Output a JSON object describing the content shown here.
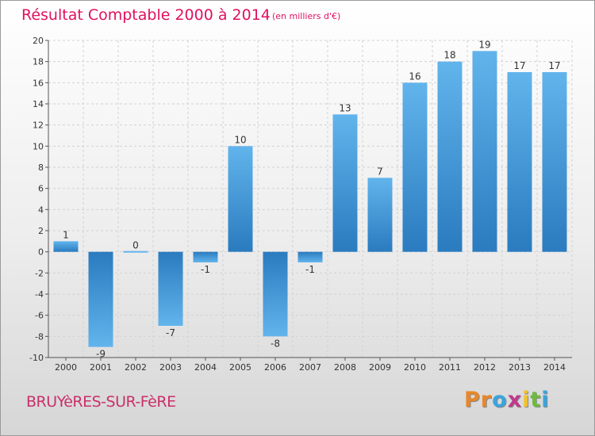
{
  "header": {
    "title": "Résultat Comptable 2000 à 2014",
    "unit": "(en milliers d'€)"
  },
  "footer": {
    "commune": "BRUYèRES-SUR-FèRE",
    "logo": [
      "P",
      "r",
      "o",
      "x",
      "i",
      "t",
      "i"
    ]
  },
  "colors": {
    "title": "#e0115f",
    "bar_light": "#62b4ec",
    "bar_dark": "#2a7bbf",
    "logo": [
      "#e8872a",
      "#e8872a",
      "#3aa5dc",
      "#c0398b",
      "#f2c12e",
      "#6dbb3c",
      "#3aa5dc"
    ]
  },
  "chart_data": {
    "type": "bar",
    "categories": [
      "2000",
      "2001",
      "2002",
      "2003",
      "2004",
      "2005",
      "2006",
      "2007",
      "2008",
      "2009",
      "2010",
      "2011",
      "2012",
      "2013",
      "2014"
    ],
    "values": [
      1,
      -9,
      0,
      -7,
      -1,
      10,
      -8,
      -1,
      13,
      7,
      16,
      18,
      19,
      17,
      17
    ],
    "ylim": [
      -10,
      20
    ],
    "yticks": [
      -10,
      -8,
      -6,
      -4,
      -2,
      0,
      2,
      4,
      6,
      8,
      10,
      12,
      14,
      16,
      18,
      20
    ],
    "grid": true
  }
}
